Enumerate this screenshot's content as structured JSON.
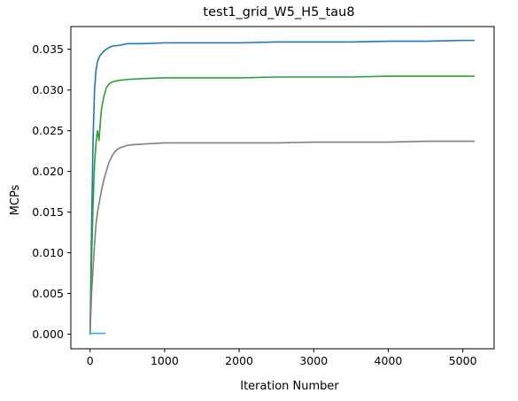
{
  "chart_data": {
    "type": "line",
    "title": "test1_grid_W5_H5_tau8",
    "xlabel": "Iteration Number",
    "ylabel": "MCPs",
    "xlim": [
      -258,
      5420
    ],
    "ylim": [
      -0.0018,
      0.0378
    ],
    "grid": false,
    "legend": "none",
    "x_ticks": [
      {
        "value": 0,
        "label": "0"
      },
      {
        "value": 1000,
        "label": "1000"
      },
      {
        "value": 2000,
        "label": "2000"
      },
      {
        "value": 3000,
        "label": "3000"
      },
      {
        "value": 4000,
        "label": "4000"
      },
      {
        "value": 5000,
        "label": "5000"
      }
    ],
    "y_ticks": [
      {
        "value": 0.0,
        "label": "0.000"
      },
      {
        "value": 0.005,
        "label": "0.005"
      },
      {
        "value": 0.01,
        "label": "0.010"
      },
      {
        "value": 0.015,
        "label": "0.015"
      },
      {
        "value": 0.02,
        "label": "0.020"
      },
      {
        "value": 0.025,
        "label": "0.025"
      },
      {
        "value": 0.03,
        "label": "0.030"
      },
      {
        "value": 0.035,
        "label": "0.035"
      }
    ],
    "series": [
      {
        "color": "#1f77b4",
        "x": [
          0,
          20,
          40,
          60,
          80,
          100,
          130,
          160,
          200,
          250,
          300,
          400,
          500,
          700,
          1000,
          1500,
          2000,
          2500,
          3000,
          3500,
          4000,
          4500,
          5000,
          5150
        ],
        "y": [
          0.0,
          0.013,
          0.024,
          0.03,
          0.0325,
          0.0335,
          0.0342,
          0.0345,
          0.0349,
          0.0352,
          0.0354,
          0.0355,
          0.0357,
          0.0357,
          0.0358,
          0.0358,
          0.0358,
          0.0359,
          0.0359,
          0.0359,
          0.036,
          0.036,
          0.0361,
          0.0361
        ]
      },
      {
        "color": "#2ca02c",
        "x": [
          0,
          20,
          40,
          60,
          80,
          100,
          120,
          150,
          180,
          220,
          260,
          300,
          400,
          500,
          700,
          1000,
          1500,
          2000,
          2500,
          3000,
          3500,
          4000,
          4500,
          5000,
          5150
        ],
        "y": [
          0.0,
          0.009,
          0.016,
          0.021,
          0.0235,
          0.025,
          0.0238,
          0.0275,
          0.029,
          0.0303,
          0.0308,
          0.031,
          0.0312,
          0.0313,
          0.0314,
          0.0315,
          0.0315,
          0.0315,
          0.0316,
          0.0316,
          0.0316,
          0.0317,
          0.0317,
          0.0317,
          0.0317
        ]
      },
      {
        "color": "#7f7f7f",
        "x": [
          0,
          20,
          40,
          60,
          80,
          100,
          130,
          160,
          200,
          250,
          300,
          350,
          400,
          500,
          600,
          800,
          1000,
          1500,
          2000,
          2500,
          3000,
          3500,
          4000,
          4500,
          5000,
          5150
        ],
        "y": [
          0.0,
          0.005,
          0.008,
          0.011,
          0.0135,
          0.015,
          0.0165,
          0.018,
          0.0195,
          0.021,
          0.022,
          0.0226,
          0.0229,
          0.0232,
          0.0233,
          0.0234,
          0.0235,
          0.0235,
          0.0235,
          0.0235,
          0.0236,
          0.0236,
          0.0236,
          0.0237,
          0.0237,
          0.0237
        ]
      },
      {
        "color": "#17becf",
        "x": [
          0,
          50,
          100,
          150,
          200
        ],
        "y": [
          0.0001,
          0.0001,
          0.0001,
          0.0001,
          0.0001
        ]
      }
    ]
  }
}
